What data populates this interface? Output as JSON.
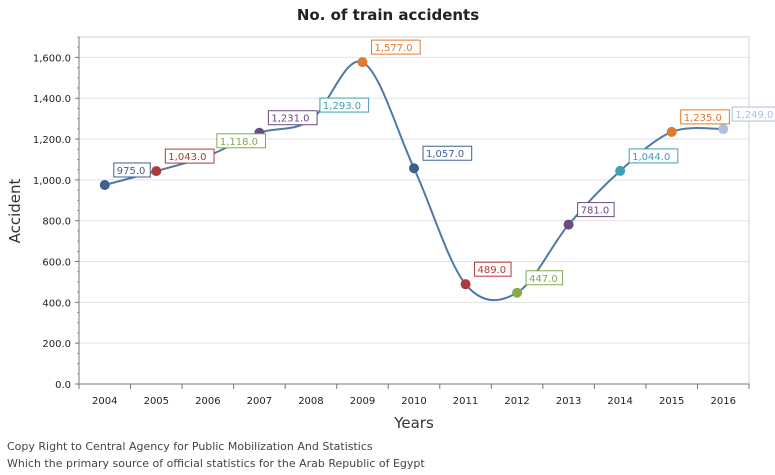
{
  "chart_data": {
    "type": "line",
    "title": "No. of train accidents",
    "xlabel": "Years",
    "ylabel": "Accident",
    "categories": [
      "2004",
      "2005",
      "2006",
      "2007",
      "2008",
      "2009",
      "2010",
      "2011",
      "2012",
      "2013",
      "2014",
      "2015",
      "2016"
    ],
    "values": [
      975,
      1043,
      1118,
      1231,
      1293,
      1577,
      1057,
      489,
      447,
      781,
      1044,
      1235,
      1249
    ],
    "data_labels": [
      "975.0",
      "1,043.0",
      "1,118.0",
      "1,231.0",
      "1,293.0",
      "1,577.0",
      "1,057.0",
      "489.0",
      "447.0",
      "781.0",
      "1,044.0",
      "1,235.0",
      "1,249.0"
    ],
    "ylim": [
      0,
      1700
    ],
    "y_ticks": [
      0,
      200,
      400,
      600,
      800,
      1000,
      1200,
      1400,
      1600
    ],
    "y_tick_labels": [
      "0.0",
      "200.0",
      "400.0",
      "600.0",
      "800.0",
      "1,000.0",
      "1,200.0",
      "1,400.0",
      "1,600.0"
    ],
    "grid": true,
    "smooth": true,
    "line_color": "#4f7aa6",
    "point_colors": [
      "#3d5f8f",
      "#b03a3a",
      "#86a94a",
      "#6a4a82",
      "#3e9eb3",
      "#e07a2e",
      "#3d5f8f",
      "#b03a3a",
      "#86a94a",
      "#6a4a82",
      "#3e9eb3",
      "#e07a2e",
      "#a9c0e0"
    ]
  },
  "footer": {
    "line1": "Copy Right to Central Agency for Public Mobilization And Statistics",
    "line2": "Which the primary source of official statistics for the Arab Republic of Egypt"
  }
}
